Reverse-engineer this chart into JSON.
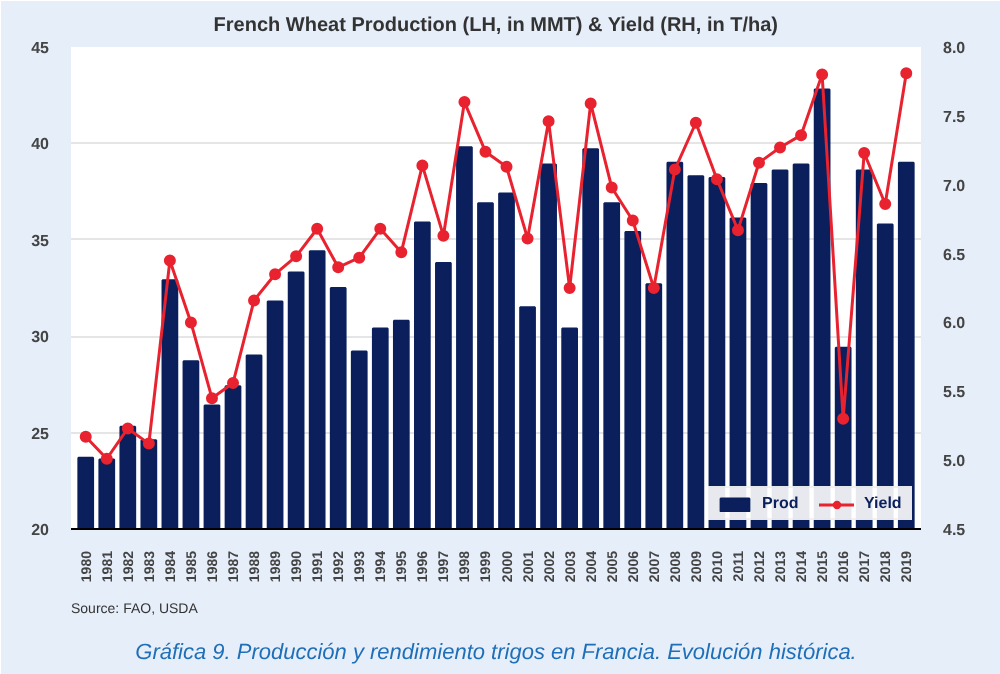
{
  "chart_data": {
    "type": "bar",
    "title": "French Wheat Production (LH, in MMT) & Yield (RH, in T/ha)",
    "categories": [
      "1980",
      "1981",
      "1982",
      "1983",
      "1984",
      "1985",
      "1986",
      "1987",
      "1988",
      "1989",
      "1990",
      "1991",
      "1992",
      "1993",
      "1994",
      "1995",
      "1996",
      "1997",
      "1998",
      "1999",
      "2000",
      "2001",
      "2002",
      "2003",
      "2004",
      "2005",
      "2006",
      "2007",
      "2008",
      "2009",
      "2010",
      "2011",
      "2012",
      "2013",
      "2014",
      "2015",
      "2016",
      "2017",
      "2018",
      "2019"
    ],
    "series": [
      {
        "name": "Prod",
        "color": "#0a1f5c",
        "values": [
          23.7,
          23.6,
          25.3,
          24.6,
          32.9,
          28.7,
          26.4,
          27.4,
          29.0,
          31.8,
          33.3,
          34.4,
          32.5,
          29.2,
          30.4,
          30.8,
          35.9,
          33.8,
          39.8,
          36.9,
          37.4,
          31.5,
          38.9,
          30.4,
          39.7,
          36.9,
          35.4,
          32.7,
          39.0,
          38.3,
          38.2,
          36.1,
          37.9,
          38.6,
          38.9,
          42.8,
          29.4,
          38.6,
          35.8,
          39.0
        ]
      },
      {
        "name": "Yield",
        "type": "line",
        "axis": "y2",
        "color": "#e8232f",
        "marker": "circle",
        "line_style": "solid",
        "values": [
          5.17,
          5.01,
          5.23,
          5.12,
          6.45,
          6.0,
          5.45,
          5.56,
          6.16,
          6.35,
          6.48,
          6.68,
          6.4,
          6.47,
          6.68,
          6.51,
          7.14,
          6.63,
          7.6,
          7.24,
          7.13,
          6.61,
          7.46,
          6.25,
          7.59,
          6.98,
          6.74,
          6.25,
          7.11,
          7.45,
          7.04,
          6.67,
          7.16,
          7.27,
          7.36,
          7.8,
          5.3,
          7.23,
          6.86,
          7.81
        ]
      }
    ],
    "ylim": [
      20,
      45
    ],
    "yticks": [
      20,
      25,
      30,
      35,
      40,
      45
    ],
    "y2lim": [
      4.5,
      8.0
    ],
    "y2ticks": [
      4.5,
      {
        "value": 5,
        "label": "5.0"
      },
      5.5,
      {
        "value": 6,
        "label": "6.0"
      },
      6.5,
      {
        "value": 7,
        "label": "7.0"
      },
      7.5,
      {
        "value": 8,
        "label": "8.0"
      }
    ],
    "grid": "y",
    "legend": "bottom right",
    "annotations": [
      "Source: FAO, USDA",
      "Gráfica 9. Producción y rendimiento trigos en Francia. Evolución histórica."
    ]
  }
}
